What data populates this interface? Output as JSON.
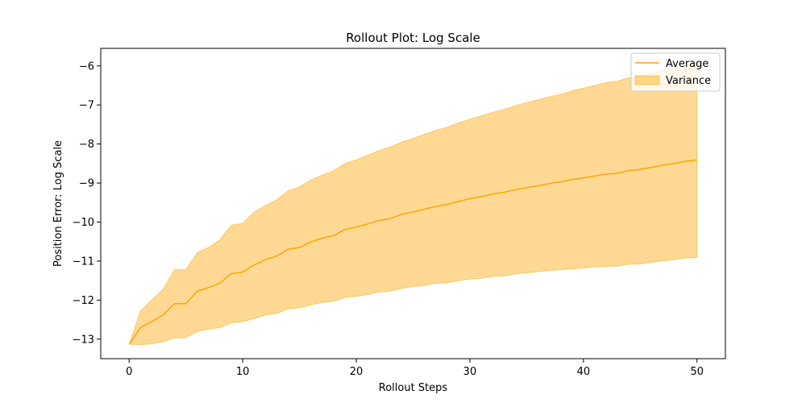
{
  "chart_data": {
    "type": "line",
    "title": "Rollout Plot: Log Scale",
    "xlabel": "Rollout Steps",
    "ylabel": "Position Error: Log Scale",
    "xlim": [
      -2.5,
      52.5
    ],
    "ylim": [
      -13.5,
      -5.55
    ],
    "xticks": [
      0,
      10,
      20,
      30,
      40,
      50
    ],
    "yticks": [
      -13,
      -12,
      -11,
      -10,
      -9,
      -8,
      -7,
      -6
    ],
    "grid": false,
    "legend_position": "top-right",
    "colors": {
      "line": "#FFA500",
      "fill": "#FFA500",
      "fill_opacity": 0.42
    },
    "x": [
      0,
      1,
      2,
      3,
      4,
      5,
      6,
      7,
      8,
      9,
      10,
      11,
      12,
      13,
      14,
      15,
      16,
      17,
      18,
      19,
      20,
      21,
      22,
      23,
      24,
      25,
      26,
      27,
      28,
      29,
      30,
      31,
      32,
      33,
      34,
      35,
      36,
      37,
      38,
      39,
      40,
      41,
      42,
      43,
      44,
      45,
      46,
      47,
      48,
      49,
      50
    ],
    "series": [
      {
        "name": "Average",
        "type": "line",
        "values": [
          -13.13,
          -12.7,
          -12.55,
          -12.38,
          -12.09,
          -12.09,
          -11.77,
          -11.68,
          -11.56,
          -11.32,
          -11.28,
          -11.1,
          -10.96,
          -10.87,
          -10.7,
          -10.65,
          -10.51,
          -10.41,
          -10.35,
          -10.19,
          -10.13,
          -10.05,
          -9.96,
          -9.91,
          -9.8,
          -9.74,
          -9.67,
          -9.6,
          -9.55,
          -9.47,
          -9.4,
          -9.35,
          -9.28,
          -9.24,
          -9.17,
          -9.12,
          -9.07,
          -9.01,
          -8.97,
          -8.91,
          -8.87,
          -8.82,
          -8.77,
          -8.75,
          -8.68,
          -8.65,
          -8.6,
          -8.54,
          -8.5,
          -8.44,
          -8.41
        ]
      },
      {
        "name": "Variance",
        "type": "band",
        "upper": [
          -13.13,
          -12.28,
          -12.0,
          -11.72,
          -11.22,
          -11.22,
          -10.78,
          -10.65,
          -10.45,
          -10.08,
          -10.03,
          -9.75,
          -9.58,
          -9.43,
          -9.2,
          -9.1,
          -8.92,
          -8.8,
          -8.69,
          -8.5,
          -8.41,
          -8.29,
          -8.17,
          -8.08,
          -7.95,
          -7.86,
          -7.75,
          -7.65,
          -7.57,
          -7.46,
          -7.37,
          -7.28,
          -7.19,
          -7.12,
          -7.02,
          -6.94,
          -6.87,
          -6.79,
          -6.73,
          -6.64,
          -6.57,
          -6.5,
          -6.43,
          -6.39,
          -6.3,
          -6.25,
          -6.19,
          -6.11,
          -6.06,
          -5.98,
          -5.93
        ],
        "lower": [
          -13.13,
          -13.14,
          -13.12,
          -13.07,
          -12.97,
          -12.96,
          -12.8,
          -12.74,
          -12.7,
          -12.58,
          -12.55,
          -12.47,
          -12.38,
          -12.34,
          -12.22,
          -12.2,
          -12.12,
          -12.06,
          -12.03,
          -11.93,
          -11.9,
          -11.86,
          -11.79,
          -11.77,
          -11.7,
          -11.65,
          -11.63,
          -11.57,
          -11.55,
          -11.5,
          -11.46,
          -11.44,
          -11.39,
          -11.38,
          -11.33,
          -11.3,
          -11.27,
          -11.24,
          -11.22,
          -11.2,
          -11.18,
          -11.15,
          -11.13,
          -11.13,
          -11.08,
          -11.07,
          -11.03,
          -10.99,
          -10.96,
          -10.92,
          -10.91
        ]
      }
    ]
  }
}
